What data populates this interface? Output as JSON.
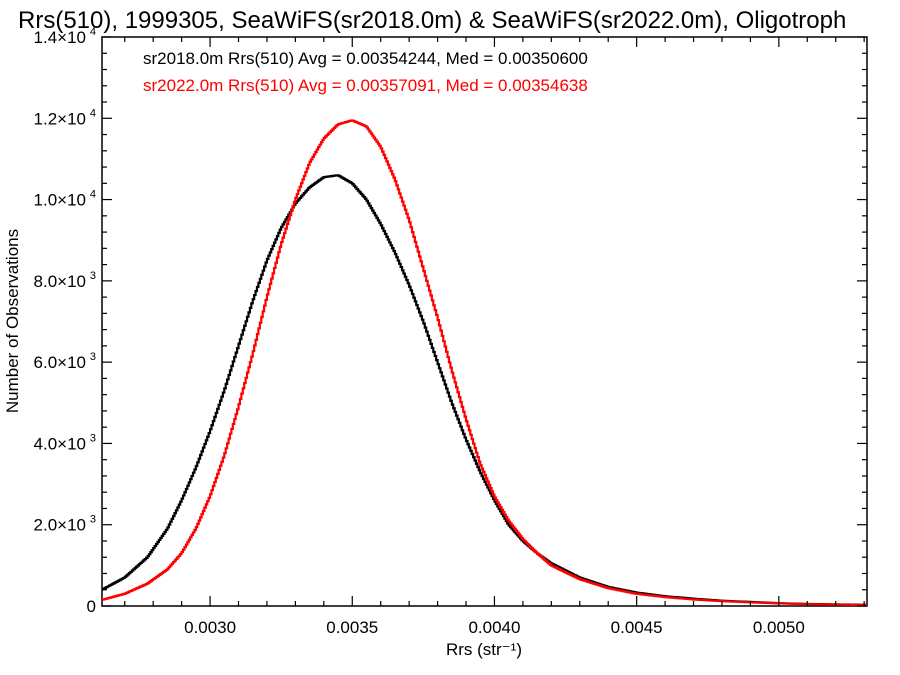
{
  "chart_data": {
    "type": "line",
    "title": "Rrs(510), 1999305, SeaWiFS(sr2018.0m) & SeaWiFS(sr2022.0m), Oligotroph",
    "xlabel": "Rrs (str⁻¹)",
    "ylabel": "Number of Observations",
    "xlim": [
      0.00262,
      0.00531
    ],
    "ylim": [
      0,
      14000
    ],
    "x_ticks": [
      {
        "value": 0.003,
        "label": "0.0030"
      },
      {
        "value": 0.0035,
        "label": "0.0035"
      },
      {
        "value": 0.004,
        "label": "0.0040"
      },
      {
        "value": 0.0045,
        "label": "0.0045"
      },
      {
        "value": 0.005,
        "label": "0.0050"
      }
    ],
    "y_ticks": [
      {
        "value": 0,
        "mant": "0",
        "exp": ""
      },
      {
        "value": 2000,
        "mant": "2.0×10",
        "exp": "3"
      },
      {
        "value": 4000,
        "mant": "4.0×10",
        "exp": "3"
      },
      {
        "value": 6000,
        "mant": "6.0×10",
        "exp": "3"
      },
      {
        "value": 8000,
        "mant": "8.0×10",
        "exp": "3"
      },
      {
        "value": 10000,
        "mant": "1.0×10",
        "exp": "4"
      },
      {
        "value": 12000,
        "mant": "1.2×10",
        "exp": "4"
      },
      {
        "value": 14000,
        "mant": "1.4×10",
        "exp": "4"
      }
    ],
    "grid": false,
    "legend_position": "top-left",
    "series": [
      {
        "label": "sr2018.0m Rrs(510) Avg = 0.00354244, Med = 0.00350600",
        "color": "#000000",
        "points": [
          [
            0.00262,
            400
          ],
          [
            0.0027,
            700
          ],
          [
            0.00278,
            1200
          ],
          [
            0.00285,
            1900
          ],
          [
            0.0029,
            2600
          ],
          [
            0.00295,
            3400
          ],
          [
            0.003,
            4300
          ],
          [
            0.00305,
            5300
          ],
          [
            0.0031,
            6400
          ],
          [
            0.00315,
            7500
          ],
          [
            0.0032,
            8500
          ],
          [
            0.00325,
            9300
          ],
          [
            0.0033,
            9900
          ],
          [
            0.00335,
            10300
          ],
          [
            0.0034,
            10550
          ],
          [
            0.00345,
            10600
          ],
          [
            0.0035,
            10400
          ],
          [
            0.00355,
            10000
          ],
          [
            0.0036,
            9400
          ],
          [
            0.00365,
            8700
          ],
          [
            0.0037,
            7900
          ],
          [
            0.00375,
            7000
          ],
          [
            0.0038,
            6000
          ],
          [
            0.00385,
            5000
          ],
          [
            0.0039,
            4100
          ],
          [
            0.00395,
            3300
          ],
          [
            0.004,
            2600
          ],
          [
            0.00405,
            2000
          ],
          [
            0.0041,
            1600
          ],
          [
            0.00415,
            1300
          ],
          [
            0.0042,
            1050
          ],
          [
            0.0043,
            700
          ],
          [
            0.0044,
            470
          ],
          [
            0.0045,
            330
          ],
          [
            0.0046,
            240
          ],
          [
            0.0047,
            180
          ],
          [
            0.0048,
            130
          ],
          [
            0.0049,
            100
          ],
          [
            0.005,
            70
          ],
          [
            0.0051,
            50
          ],
          [
            0.0052,
            40
          ],
          [
            0.00531,
            30
          ]
        ]
      },
      {
        "label": "sr2022.0m Rrs(510) Avg = 0.00357091, Med = 0.00354638",
        "color": "#ff0000",
        "points": [
          [
            0.00262,
            150
          ],
          [
            0.0027,
            300
          ],
          [
            0.00278,
            550
          ],
          [
            0.00285,
            900
          ],
          [
            0.0029,
            1300
          ],
          [
            0.00295,
            1900
          ],
          [
            0.003,
            2700
          ],
          [
            0.00305,
            3700
          ],
          [
            0.0031,
            4900
          ],
          [
            0.00315,
            6200
          ],
          [
            0.0032,
            7600
          ],
          [
            0.00325,
            8900
          ],
          [
            0.0033,
            10000
          ],
          [
            0.00335,
            10900
          ],
          [
            0.0034,
            11500
          ],
          [
            0.00345,
            11850
          ],
          [
            0.0035,
            11950
          ],
          [
            0.00355,
            11800
          ],
          [
            0.0036,
            11300
          ],
          [
            0.00365,
            10500
          ],
          [
            0.0037,
            9500
          ],
          [
            0.00375,
            8300
          ],
          [
            0.0038,
            7100
          ],
          [
            0.00385,
            5800
          ],
          [
            0.0039,
            4600
          ],
          [
            0.00395,
            3500
          ],
          [
            0.004,
            2700
          ],
          [
            0.00405,
            2100
          ],
          [
            0.0041,
            1650
          ],
          [
            0.00415,
            1300
          ],
          [
            0.0042,
            1000
          ],
          [
            0.0043,
            660
          ],
          [
            0.0044,
            440
          ],
          [
            0.0045,
            300
          ],
          [
            0.0046,
            220
          ],
          [
            0.0047,
            160
          ],
          [
            0.0048,
            120
          ],
          [
            0.0049,
            90
          ],
          [
            0.005,
            65
          ],
          [
            0.0051,
            45
          ],
          [
            0.0052,
            35
          ],
          [
            0.00531,
            25
          ]
        ]
      }
    ]
  }
}
